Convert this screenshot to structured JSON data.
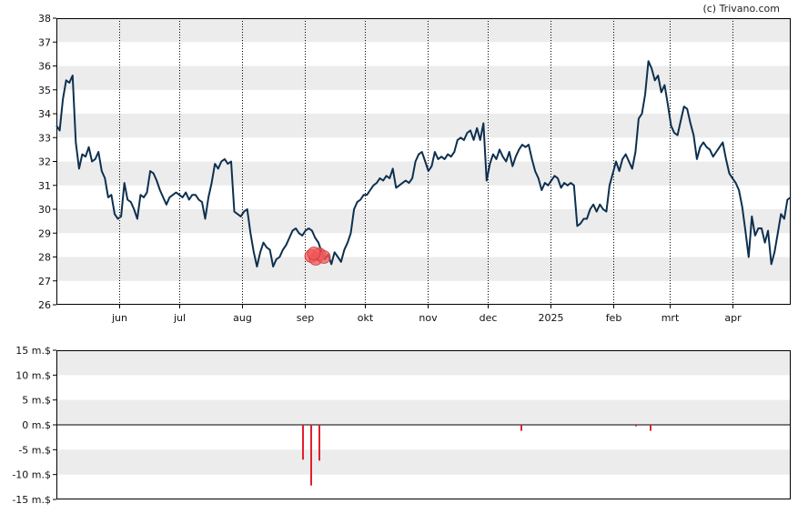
{
  "credit": "(c) Trivano.com",
  "colors": {
    "band": "#ececec",
    "price_line": "#0d3050",
    "volume_bar": "#e0202c",
    "marker": "#f05a5a",
    "axis": "#000000",
    "vgrid": "#000000"
  },
  "chart_data": [
    {
      "type": "line",
      "title": "",
      "x_tick_labels": [
        "jun",
        "jul",
        "aug",
        "sep",
        "okt",
        "nov",
        "dec",
        "2025",
        "feb",
        "mrt",
        "apr"
      ],
      "x_range": [
        "2024-05-01",
        "2025-04-30"
      ],
      "ylim": [
        26,
        38
      ],
      "y_ticks": [
        26,
        27,
        28,
        29,
        30,
        31,
        32,
        33,
        34,
        35,
        36,
        37,
        38
      ],
      "grid": "alternating horizontal bands, dotted vertical month lines",
      "series": [
        {
          "values": [
            33.5,
            33.3,
            34.6,
            35.4,
            35.3,
            35.6,
            32.8,
            31.7,
            32.3,
            32.2,
            32.6,
            32.0,
            32.1,
            32.4,
            31.6,
            31.3,
            30.5,
            30.6,
            29.8,
            29.6,
            29.7,
            31.1,
            30.4,
            30.3,
            30.0,
            29.6,
            30.6,
            30.5,
            30.7,
            31.6,
            31.5,
            31.2,
            30.8,
            30.5,
            30.2,
            30.5,
            30.6,
            30.7,
            30.6,
            30.5,
            30.7,
            30.4,
            30.6,
            30.6,
            30.4,
            30.3,
            29.6,
            30.5,
            31.1,
            31.9,
            31.7,
            32.0,
            32.1,
            31.9,
            32.0,
            29.9,
            29.8,
            29.7,
            29.9,
            30.0,
            29.0,
            28.2,
            27.6,
            28.2,
            28.6,
            28.4,
            28.3,
            27.6,
            27.9,
            28.0,
            28.3,
            28.5,
            28.8,
            29.1,
            29.2,
            29.0,
            28.9,
            29.1,
            29.2,
            29.1,
            28.8,
            28.6,
            28.2,
            27.9,
            28.1,
            27.7,
            28.2,
            28.0,
            27.8,
            28.3,
            28.6,
            29.0,
            30.0,
            30.3,
            30.4,
            30.6,
            30.6,
            30.8,
            31.0,
            31.1,
            31.3,
            31.2,
            31.4,
            31.3,
            31.7,
            30.9,
            31.0,
            31.1,
            31.2,
            31.1,
            31.3,
            32.0,
            32.3,
            32.4,
            32.0,
            31.6,
            31.8,
            32.4,
            32.1,
            32.2,
            32.1,
            32.3,
            32.2,
            32.4,
            32.9,
            33.0,
            32.9,
            33.2,
            33.3,
            32.9,
            33.4,
            32.9,
            33.6,
            31.2,
            31.9,
            32.3,
            32.1,
            32.5,
            32.2,
            32.0,
            32.4,
            31.8,
            32.2,
            32.5,
            32.7,
            32.6,
            32.7,
            32.1,
            31.6,
            31.3,
            30.8,
            31.1,
            31.0,
            31.2,
            31.4,
            31.3,
            30.9,
            31.1,
            31.0,
            31.1,
            31.0,
            29.3,
            29.4,
            29.6,
            29.6,
            30.0,
            30.2,
            29.9,
            30.2,
            30.0,
            29.9,
            31.0,
            31.5,
            32.0,
            31.6,
            32.1,
            32.3,
            32.0,
            31.7,
            32.4,
            33.8,
            34.0,
            34.8,
            36.2,
            35.9,
            35.4,
            35.6,
            34.9,
            35.2,
            34.4,
            33.5,
            33.2,
            33.1,
            33.7,
            34.3,
            34.2,
            33.6,
            33.1,
            32.1,
            32.6,
            32.8,
            32.6,
            32.5,
            32.2,
            32.4,
            32.6,
            32.8,
            32.1,
            31.5,
            31.3,
            31.1,
            30.8,
            30.1,
            29.1,
            28.0,
            29.7,
            28.9,
            29.2,
            29.2,
            28.6,
            29.1,
            27.7,
            28.2,
            29.0,
            29.8,
            29.6,
            30.4,
            30.5
          ]
        }
      ],
      "annotations": [
        {
          "type": "marker-cluster",
          "x": "2024-09-07",
          "y": 28.0
        }
      ]
    },
    {
      "type": "bar",
      "title": "",
      "ylim": [
        -15,
        15
      ],
      "y_ticks": [
        -15,
        -10,
        -5,
        0,
        5,
        10,
        15
      ],
      "y_tick_labels": [
        "-15 m.$",
        "-10 m.$",
        "-5 m.$",
        "0 m.$",
        "5 m.$",
        "10 m.$",
        "15 m.$"
      ],
      "series": [
        {
          "points": [
            {
              "x": "2024-08-31",
              "value": -7.0
            },
            {
              "x": "2024-09-04",
              "value": -12.2
            },
            {
              "x": "2024-09-08",
              "value": -7.2
            },
            {
              "x": "2024-12-17",
              "value": -1.2
            },
            {
              "x": "2025-02-12",
              "value": -0.3
            },
            {
              "x": "2025-02-19",
              "value": -1.2
            }
          ]
        }
      ]
    }
  ]
}
